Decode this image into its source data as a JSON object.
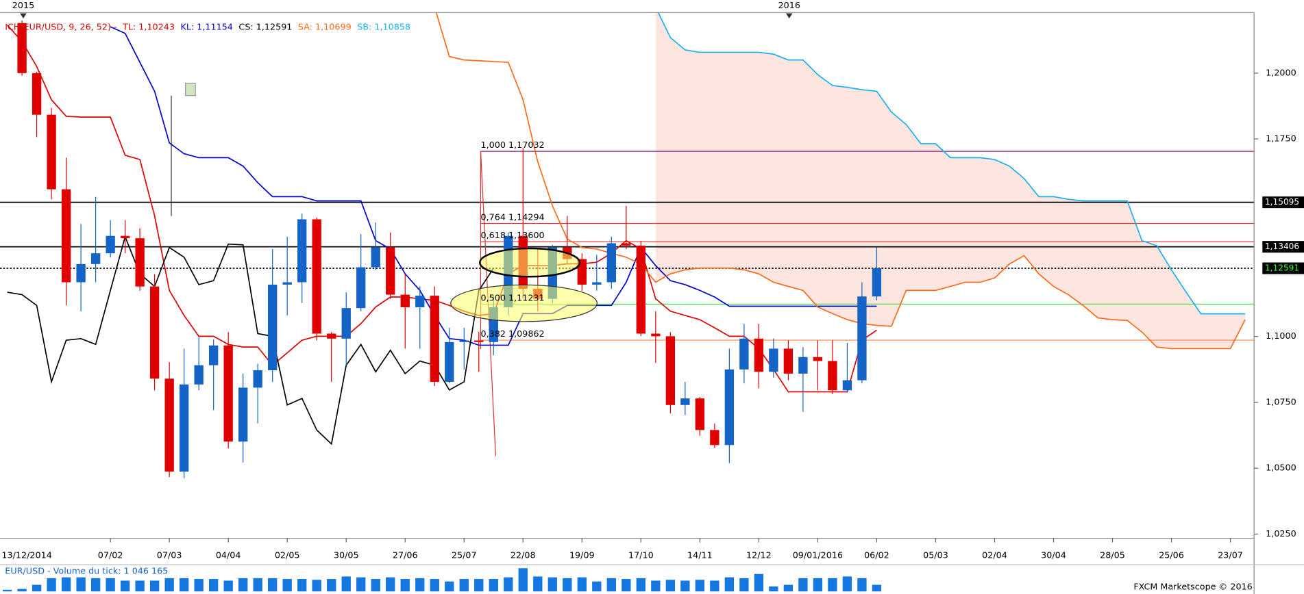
{
  "chart_data": {
    "type": "candlestick",
    "indicator_legend": [
      {
        "text": "ICH(EUR/USD, 9, 26, 52) -",
        "color": "#d40000"
      },
      {
        "text": "TL: 1,10243",
        "color": "#d40000"
      },
      {
        "text": "KL: 1,11154",
        "color": "#0000cc"
      },
      {
        "text": "CS: 1,12591",
        "color": "#000000"
      },
      {
        "text": "SA: 1,10699",
        "color": "#ff6a1a"
      },
      {
        "text": "SB: 1,10858",
        "color": "#1ab0f0"
      }
    ],
    "year_labels": [
      "2015",
      "2016"
    ],
    "categories": [
      "13/12/2014",
      null,
      null,
      null,
      null,
      null,
      null,
      null,
      "07/02",
      null,
      null,
      null,
      "07/03",
      null,
      null,
      null,
      "04/04",
      null,
      null,
      null,
      "02/05",
      null,
      null,
      null,
      "30/05",
      null,
      null,
      null,
      "27/06",
      null,
      null,
      null,
      "25/07",
      null,
      null,
      null,
      "22/08",
      null,
      null,
      null,
      "19/09",
      null,
      null,
      null,
      "17/10",
      null,
      null,
      null,
      "14/11",
      null,
      null,
      null,
      "12/12",
      null,
      null,
      null,
      "09/01/2016",
      null,
      null,
      null,
      "06/02",
      null,
      null,
      null,
      "05/03",
      null,
      null,
      null,
      "02/04",
      null,
      null,
      null,
      "30/04",
      null,
      null,
      null,
      "28/05",
      null,
      null,
      null,
      "25/06",
      null,
      null,
      null,
      "23/07",
      null
    ],
    "up_color": "#1464c8",
    "down_color": "#e00000",
    "open": [
      null,
      null,
      1.219,
      1.2,
      1.1842,
      1.1559,
      1.1206,
      1.1275,
      1.1316,
      1.1382,
      1.1373,
      1.119,
      1.084,
      1.0487,
      1.0818,
      1.0891,
      1.0966,
      1.0601,
      1.0806,
      1.0872,
      1.1197,
      1.1206,
      1.1445,
      1.1011,
      1.0992,
      1.1108,
      1.1263,
      1.1338,
      1.1159,
      1.1111,
      1.1155,
      1.0828,
      1.0979,
      1.0985,
      1.0979,
      1.1111,
      1.1382,
      1.1181,
      1.1143,
      1.1338,
      1.1294,
      1.1197,
      1.1206,
      1.1354,
      1.1345,
      1.1011,
      1.1001,
      1.074,
      1.0765,
      1.0645,
      1.0588,
      1.0875,
      1.0992,
      1.0866,
      1.0954,
      1.0859,
      1.0922,
      1.0907,
      1.0796,
      1.0834,
      1.1152,
      null,
      null,
      null,
      null,
      null,
      null,
      null,
      null,
      null,
      null,
      null,
      null,
      null,
      null,
      null,
      null,
      null,
      null,
      null,
      null,
      null,
      null,
      null,
      null,
      null
    ],
    "high": [
      null,
      null,
      1.22,
      1.2005,
      1.1868,
      1.1679,
      1.1427,
      1.153,
      1.1442,
      1.1442,
      1.1411,
      1.1237,
      1.0903,
      1.0954,
      1.1001,
      1.0989,
      1.1017,
      1.0859,
      1.0897,
      1.1332,
      1.1379,
      1.1467,
      1.1452,
      1.1017,
      1.1168,
      1.1389,
      1.1433,
      1.1395,
      1.1237,
      1.119,
      1.119,
      1.1033,
      1.1033,
      1.1017,
      1.1159,
      1.1395,
      1.1716,
      1.1332,
      1.1348,
      1.1458,
      1.1316,
      1.131,
      1.1379,
      1.1496,
      1.1363,
      1.1096,
      1.1017,
      1.0828,
      1.0771,
      1.067,
      1.0954,
      1.1048,
      1.1048,
      1.0992,
      1.0985,
      1.096,
      1.0985,
      1.0985,
      1.0976,
      1.1206,
      1.1338,
      null,
      null,
      null,
      null,
      null,
      null,
      null,
      null,
      null,
      null,
      null,
      null,
      null,
      null,
      null,
      null,
      null,
      null,
      null,
      null,
      null,
      null,
      null,
      null,
      null
    ],
    "low": [
      null,
      null,
      1.199,
      1.1757,
      1.1521,
      1.1118,
      1.1096,
      1.1206,
      1.13,
      1.1316,
      1.1174,
      1.0796,
      1.0466,
      1.0462,
      1.0796,
      1.0721,
      1.0576,
      1.0522,
      1.067,
      1.0828,
      1.108,
      1.1127,
      1.0985,
      1.0828,
      1.0891,
      1.1096,
      1.1253,
      1.1143,
      1.0954,
      1.0954,
      1.0812,
      1.0822,
      1.0875,
      1.0866,
      1.0929,
      1.108,
      1.1143,
      1.1096,
      1.1127,
      1.1275,
      1.1174,
      1.1174,
      1.1181,
      1.1332,
      1.1001,
      1.09,
      1.0708,
      1.0702,
      1.0623,
      1.0576,
      1.0519,
      1.0822,
      1.0803,
      1.0844,
      1.0834,
      1.0714,
      1.0796,
      1.0781,
      1.0787,
      1.0822,
      1.1137,
      null,
      null,
      null,
      null,
      null,
      null,
      null,
      null,
      null,
      null,
      null,
      null,
      null,
      null,
      null,
      null,
      null,
      null,
      null,
      null,
      null,
      null,
      null,
      null,
      null
    ],
    "close": [
      null,
      null,
      1.2,
      1.1842,
      1.1559,
      1.1206,
      1.1275,
      1.1316,
      1.1382,
      1.1373,
      1.119,
      1.084,
      1.0487,
      1.0818,
      1.0891,
      1.0966,
      1.0601,
      1.0806,
      1.0872,
      1.1197,
      1.1206,
      1.1445,
      1.1011,
      1.0992,
      1.1108,
      1.1263,
      1.1338,
      1.1159,
      1.1111,
      1.1155,
      1.0828,
      1.0979,
      1.0985,
      1.0979,
      1.1111,
      1.1382,
      1.1181,
      1.1143,
      1.1338,
      1.1294,
      1.1197,
      1.1206,
      1.1354,
      1.1345,
      1.1011,
      1.1001,
      1.074,
      1.0765,
      1.0645,
      1.0588,
      1.0875,
      1.0992,
      1.0866,
      1.0954,
      1.0859,
      1.0922,
      1.0907,
      1.0796,
      1.0834,
      1.1152,
      1.1259,
      null,
      null,
      null,
      null,
      null,
      null,
      null,
      null,
      null,
      null,
      null,
      null,
      null,
      null,
      null,
      null,
      null,
      null,
      null,
      null,
      null,
      null,
      null,
      null,
      null
    ],
    "series": [
      {
        "color": "#e00000",
        "values": [
          null,
          1.2183,
          1.212,
          1.2025,
          1.1899,
          1.1836,
          1.1833,
          1.1833,
          1.1833,
          1.1688,
          1.1672,
          1.1458,
          1.1175,
          1.108,
          1.1001,
          1.1001,
          1.097,
          1.096,
          1.096,
          1.0891,
          1.0938,
          1.0986,
          1.1001,
          1.1001,
          1.1001,
          1.1049,
          1.1112,
          1.115,
          1.115,
          1.1143,
          1.1137,
          1.1118,
          1.1096,
          1.108,
          1.1087,
          1.1238,
          1.1269,
          1.1269,
          1.1269,
          1.1276,
          1.1276,
          1.1282,
          1.1316,
          1.1364,
          1.1332,
          1.1143,
          1.1096,
          1.108,
          1.1064,
          1.1033,
          1.1001,
          1.1001,
          1.0954,
          1.0875,
          1.079,
          1.079,
          1.079,
          1.079,
          1.079,
          1.0986,
          1.1024,
          null,
          null,
          null,
          null,
          null,
          null,
          null,
          null,
          null,
          null,
          null,
          null,
          null,
          null,
          null,
          null,
          null,
          null,
          null,
          null,
          null,
          null,
          null,
          null,
          null
        ]
      },
      {
        "color": "#0000cc",
        "values": [
          null,
          null,
          null,
          null,
          null,
          null,
          null,
          null,
          1.2176,
          1.2151,
          1.2041,
          1.1931,
          1.1735,
          1.1694,
          1.1679,
          1.1679,
          1.1679,
          1.1647,
          1.1584,
          1.1531,
          1.1531,
          1.1531,
          1.1515,
          1.1515,
          1.1515,
          1.1515,
          1.1364,
          1.1332,
          1.1238,
          1.1175,
          1.108,
          1.0992,
          1.0986,
          1.0967,
          1.0967,
          1.0967,
          1.1087,
          1.1087,
          1.1087,
          1.1118,
          1.1118,
          1.1118,
          1.1118,
          1.1206,
          1.1338,
          1.1269,
          1.1212,
          1.1197,
          1.1175,
          1.115,
          1.1115,
          1.1115,
          1.1115,
          1.1115,
          1.1115,
          1.1115,
          1.1115,
          1.1115,
          1.1115,
          1.1115,
          1.1115,
          null,
          null,
          null,
          null,
          null,
          null,
          null,
          null,
          null,
          null,
          null,
          null,
          null,
          null,
          null,
          null,
          null,
          null,
          null,
          null,
          null,
          null,
          null,
          null,
          null
        ]
      },
      {
        "color": "#000000",
        "values": [
          null,
          1.1168,
          1.1159,
          1.1118,
          1.0828,
          1.0986,
          1.0992,
          1.097,
          1.1175,
          1.1379,
          1.1238,
          1.119,
          1.1338,
          1.1301,
          1.1197,
          1.1212,
          1.1351,
          1.1348,
          1.1011,
          1.1001,
          1.074,
          1.0765,
          1.0645,
          1.0592,
          1.0891,
          1.097,
          1.0866,
          1.0948,
          1.0859,
          1.0907,
          1.0891,
          1.0797,
          1.0828,
          1.1175,
          1.1259,
          null,
          null,
          null,
          null,
          null,
          null,
          null,
          null,
          null,
          null,
          null,
          null,
          null,
          null,
          null,
          null,
          null,
          null,
          null,
          null,
          null,
          null,
          null,
          null,
          null,
          null,
          null,
          null,
          null,
          null,
          null,
          null,
          null,
          null,
          null,
          null,
          null,
          null,
          null,
          null,
          null,
          null,
          null,
          null,
          null,
          null,
          null,
          null,
          null,
          null,
          null
        ]
      },
      {
        "color": "#ff6a1a",
        "values": [
          null,
          null,
          null,
          null,
          null,
          null,
          null,
          null,
          null,
          null,
          null,
          null,
          null,
          null,
          null,
          null,
          null,
          null,
          null,
          null,
          null,
          null,
          null,
          null,
          null,
          null,
          null,
          null,
          null,
          null,
          1.225,
          1.2063,
          1.205,
          1.2047,
          1.2044,
          1.2041,
          1.1899,
          1.1663,
          1.1496,
          1.137,
          1.1338,
          1.1332,
          1.1316,
          1.1301,
          1.1275,
          1.1206,
          1.1238,
          1.1253,
          1.126,
          1.126,
          1.126,
          1.1253,
          1.1238,
          1.1206,
          1.119,
          1.1175,
          1.1112,
          1.1087,
          1.1064,
          1.1049,
          1.1042,
          1.1039,
          1.1175,
          1.1175,
          1.1175,
          1.119,
          1.1206,
          1.1206,
          1.1222,
          1.1275,
          1.1307,
          1.1238,
          1.119,
          1.1159,
          1.1118,
          1.1071,
          1.1064,
          1.1061,
          1.1017,
          1.096,
          1.0954,
          1.0954,
          1.0954,
          1.0954,
          1.0954,
          1.1064
        ]
      },
      {
        "color": "#1ab0f0",
        "values": [
          null,
          null,
          null,
          null,
          null,
          null,
          null,
          null,
          null,
          null,
          null,
          null,
          null,
          null,
          null,
          null,
          null,
          null,
          null,
          null,
          null,
          null,
          null,
          null,
          null,
          null,
          null,
          null,
          null,
          null,
          null,
          null,
          null,
          null,
          null,
          null,
          null,
          null,
          null,
          null,
          null,
          null,
          null,
          null,
          null,
          1.225,
          1.2135,
          1.2088,
          1.2079,
          1.2079,
          1.2079,
          1.2079,
          1.2079,
          1.2072,
          1.205,
          1.205,
          1.1994,
          1.1953,
          1.1946,
          1.1937,
          1.1931,
          1.1852,
          1.1805,
          1.1732,
          1.1732,
          1.1679,
          1.1679,
          1.1679,
          1.1672,
          1.1647,
          1.16,
          1.1531,
          1.1531,
          1.1521,
          1.1515,
          1.1515,
          1.1515,
          1.1515,
          1.1364,
          1.1345,
          1.1253,
          1.1168,
          1.1086,
          1.1086,
          1.1086,
          1.1086
        ]
      }
    ],
    "cloud_color": "#fde6e0",
    "fib_levels": [
      {
        "label": "1,000 1,17032",
        "value": 1.17032,
        "color": "#8b1a8b"
      },
      {
        "label": "0,764 1,14294",
        "value": 1.14294,
        "color": "#e03030"
      },
      {
        "label": "0,618 1,13600",
        "value": 1.136,
        "color": "#e03030"
      },
      {
        "label": "0,500 1,11231",
        "value": 1.11231,
        "color": "#44dd44"
      },
      {
        "label": "0,382 1,09862",
        "value": 1.09862,
        "color": "#ff8040"
      }
    ],
    "horizontal_lines": [
      {
        "value": 1.15095,
        "label": "1,15095",
        "dash": false,
        "text_color": "#ffffff"
      },
      {
        "value": 1.13406,
        "label": "1,13406",
        "dash": false,
        "text_color": "#ffffff"
      },
      {
        "value": 1.12591,
        "label": "1,12591",
        "dash": true,
        "text_color": "#33ff33"
      }
    ],
    "ylim": [
      1.0234,
      1.223
    ],
    "yticks": [
      {
        "value": 1.025,
        "label": "1,0250"
      },
      {
        "value": 1.05,
        "label": "1,0500"
      },
      {
        "value": 1.075,
        "label": "1,0750"
      },
      {
        "value": 1.1,
        "label": "1,1000"
      },
      {
        "value": 1.175,
        "label": "1,1750"
      },
      {
        "value": 1.2,
        "label": "1,2000"
      }
    ],
    "volume": {
      "title": "EUR/USD - Volume du tick: 1 046 165",
      "color": "#1478e0",
      "ylim": [
        0,
        3800000
      ],
      "values": [
        null,
        262000,
        393000,
        1048000,
        2096000,
        2227000,
        2227000,
        2096000,
        2096000,
        1703000,
        1703000,
        1703000,
        2096000,
        2096000,
        1965000,
        1965000,
        1703000,
        2096000,
        2096000,
        2096000,
        1965000,
        1965000,
        1834000,
        1965000,
        2358000,
        2227000,
        1965000,
        2227000,
        1965000,
        2096000,
        1965000,
        1572000,
        1965000,
        1965000,
        1965000,
        2227000,
        3668000,
        2358000,
        2227000,
        2096000,
        2227000,
        1572000,
        2096000,
        1965000,
        2096000,
        1703000,
        1834000,
        1703000,
        1834000,
        1703000,
        2227000,
        2096000,
        2751000,
        786000,
        1048000,
        2096000,
        2096000,
        2096000,
        2358000,
        2096000,
        1046165,
        null,
        null,
        null,
        null,
        null,
        null,
        null,
        null,
        null,
        null,
        null,
        null,
        null,
        null,
        null,
        null,
        null,
        null,
        null,
        null,
        null,
        null,
        null,
        null,
        null
      ]
    },
    "credit": "FXCM Marketscope © 2016"
  }
}
